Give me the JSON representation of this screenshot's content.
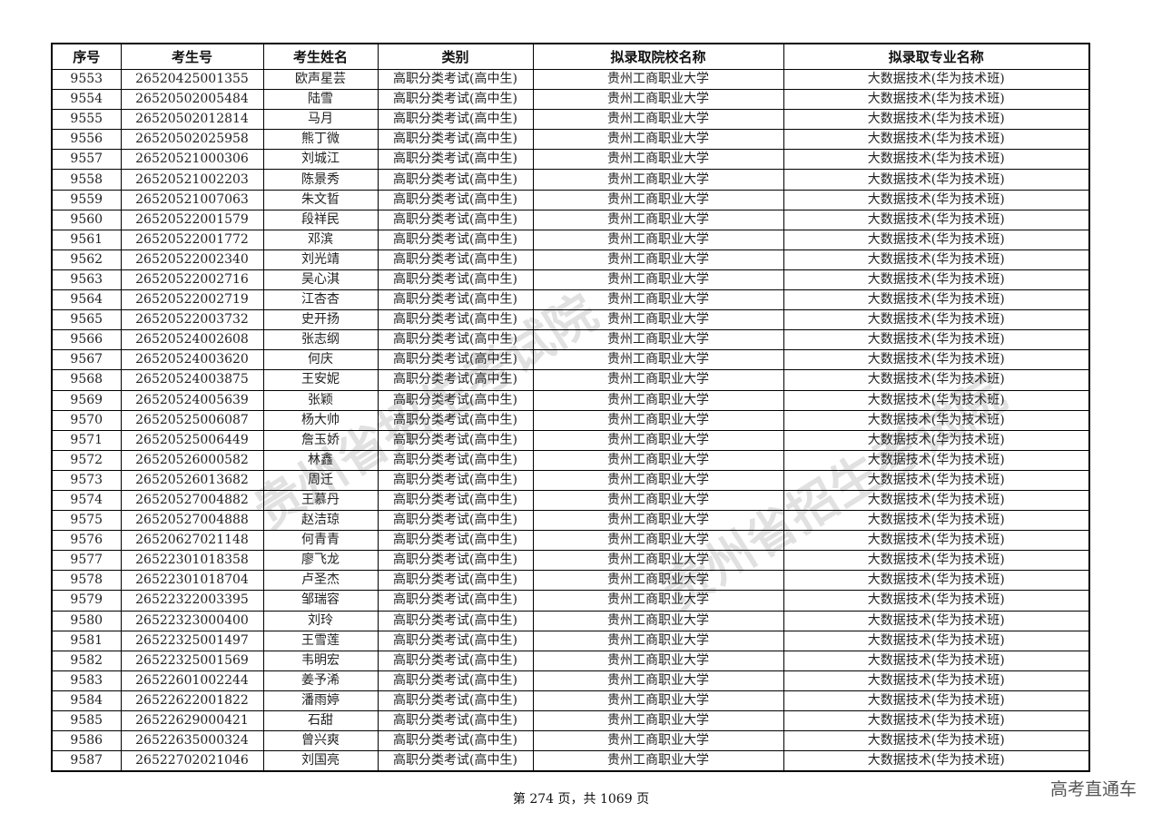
{
  "table": {
    "headers": [
      "序号",
      "考生号",
      "考生姓名",
      "类别",
      "拟录取院校名称",
      "拟录取专业名称"
    ],
    "rows": [
      [
        "9553",
        "26520425001355",
        "欧声星芸",
        "高职分类考试(高中生)",
        "贵州工商职业大学",
        "大数据技术(华为技术班)"
      ],
      [
        "9554",
        "26520502005484",
        "陆雪",
        "高职分类考试(高中生)",
        "贵州工商职业大学",
        "大数据技术(华为技术班)"
      ],
      [
        "9555",
        "26520502012814",
        "马月",
        "高职分类考试(高中生)",
        "贵州工商职业大学",
        "大数据技术(华为技术班)"
      ],
      [
        "9556",
        "26520502025958",
        "熊丁微",
        "高职分类考试(高中生)",
        "贵州工商职业大学",
        "大数据技术(华为技术班)"
      ],
      [
        "9557",
        "26520521000306",
        "刘城江",
        "高职分类考试(高中生)",
        "贵州工商职业大学",
        "大数据技术(华为技术班)"
      ],
      [
        "9558",
        "26520521002203",
        "陈景秀",
        "高职分类考试(高中生)",
        "贵州工商职业大学",
        "大数据技术(华为技术班)"
      ],
      [
        "9559",
        "26520521007063",
        "朱文晢",
        "高职分类考试(高中生)",
        "贵州工商职业大学",
        "大数据技术(华为技术班)"
      ],
      [
        "9560",
        "26520522001579",
        "段祥民",
        "高职分类考试(高中生)",
        "贵州工商职业大学",
        "大数据技术(华为技术班)"
      ],
      [
        "9561",
        "26520522001772",
        "邓滨",
        "高职分类考试(高中生)",
        "贵州工商职业大学",
        "大数据技术(华为技术班)"
      ],
      [
        "9562",
        "26520522002340",
        "刘光靖",
        "高职分类考试(高中生)",
        "贵州工商职业大学",
        "大数据技术(华为技术班)"
      ],
      [
        "9563",
        "26520522002716",
        "吴心淇",
        "高职分类考试(高中生)",
        "贵州工商职业大学",
        "大数据技术(华为技术班)"
      ],
      [
        "9564",
        "26520522002719",
        "江杏杏",
        "高职分类考试(高中生)",
        "贵州工商职业大学",
        "大数据技术(华为技术班)"
      ],
      [
        "9565",
        "26520522003732",
        "史开扬",
        "高职分类考试(高中生)",
        "贵州工商职业大学",
        "大数据技术(华为技术班)"
      ],
      [
        "9566",
        "26520524002608",
        "张志纲",
        "高职分类考试(高中生)",
        "贵州工商职业大学",
        "大数据技术(华为技术班)"
      ],
      [
        "9567",
        "26520524003620",
        "何庆",
        "高职分类考试(高中生)",
        "贵州工商职业大学",
        "大数据技术(华为技术班)"
      ],
      [
        "9568",
        "26520524003875",
        "王安妮",
        "高职分类考试(高中生)",
        "贵州工商职业大学",
        "大数据技术(华为技术班)"
      ],
      [
        "9569",
        "26520524005639",
        "张颖",
        "高职分类考试(高中生)",
        "贵州工商职业大学",
        "大数据技术(华为技术班)"
      ],
      [
        "9570",
        "26520525006087",
        "杨大帅",
        "高职分类考试(高中生)",
        "贵州工商职业大学",
        "大数据技术(华为技术班)"
      ],
      [
        "9571",
        "26520525006449",
        "詹玉娇",
        "高职分类考试(高中生)",
        "贵州工商职业大学",
        "大数据技术(华为技术班)"
      ],
      [
        "9572",
        "26520526000582",
        "林鑫",
        "高职分类考试(高中生)",
        "贵州工商职业大学",
        "大数据技术(华为技术班)"
      ],
      [
        "9573",
        "26520526013682",
        "周迁",
        "高职分类考试(高中生)",
        "贵州工商职业大学",
        "大数据技术(华为技术班)"
      ],
      [
        "9574",
        "26520527004882",
        "王慕丹",
        "高职分类考试(高中生)",
        "贵州工商职业大学",
        "大数据技术(华为技术班)"
      ],
      [
        "9575",
        "26520527004888",
        "赵洁琼",
        "高职分类考试(高中生)",
        "贵州工商职业大学",
        "大数据技术(华为技术班)"
      ],
      [
        "9576",
        "26520627021148",
        "何青青",
        "高职分类考试(高中生)",
        "贵州工商职业大学",
        "大数据技术(华为技术班)"
      ],
      [
        "9577",
        "26522301018358",
        "廖飞龙",
        "高职分类考试(高中生)",
        "贵州工商职业大学",
        "大数据技术(华为技术班)"
      ],
      [
        "9578",
        "26522301018704",
        "卢圣杰",
        "高职分类考试(高中生)",
        "贵州工商职业大学",
        "大数据技术(华为技术班)"
      ],
      [
        "9579",
        "26522322003395",
        "邹瑞容",
        "高职分类考试(高中生)",
        "贵州工商职业大学",
        "大数据技术(华为技术班)"
      ],
      [
        "9580",
        "26522323000400",
        "刘玲",
        "高职分类考试(高中生)",
        "贵州工商职业大学",
        "大数据技术(华为技术班)"
      ],
      [
        "9581",
        "26522325001497",
        "王雪莲",
        "高职分类考试(高中生)",
        "贵州工商职业大学",
        "大数据技术(华为技术班)"
      ],
      [
        "9582",
        "26522325001569",
        "韦明宏",
        "高职分类考试(高中生)",
        "贵州工商职业大学",
        "大数据技术(华为技术班)"
      ],
      [
        "9583",
        "26522601002244",
        "姜予浠",
        "高职分类考试(高中生)",
        "贵州工商职业大学",
        "大数据技术(华为技术班)"
      ],
      [
        "9584",
        "26522622001822",
        "潘雨婷",
        "高职分类考试(高中生)",
        "贵州工商职业大学",
        "大数据技术(华为技术班)"
      ],
      [
        "9585",
        "26522629000421",
        "石甜",
        "高职分类考试(高中生)",
        "贵州工商职业大学",
        "大数据技术(华为技术班)"
      ],
      [
        "9586",
        "26522635000324",
        "曾兴爽",
        "高职分类考试(高中生)",
        "贵州工商职业大学",
        "大数据技术(华为技术班)"
      ],
      [
        "9587",
        "26522702021046",
        "刘国亮",
        "高职分类考试(高中生)",
        "贵州工商职业大学",
        "大数据技术(华为技术班)"
      ]
    ]
  },
  "footer": {
    "page_text": "第 274 页，共 1069 页"
  },
  "watermark": {
    "text": "贵州省招生考试院",
    "corner": "高考直通车"
  }
}
